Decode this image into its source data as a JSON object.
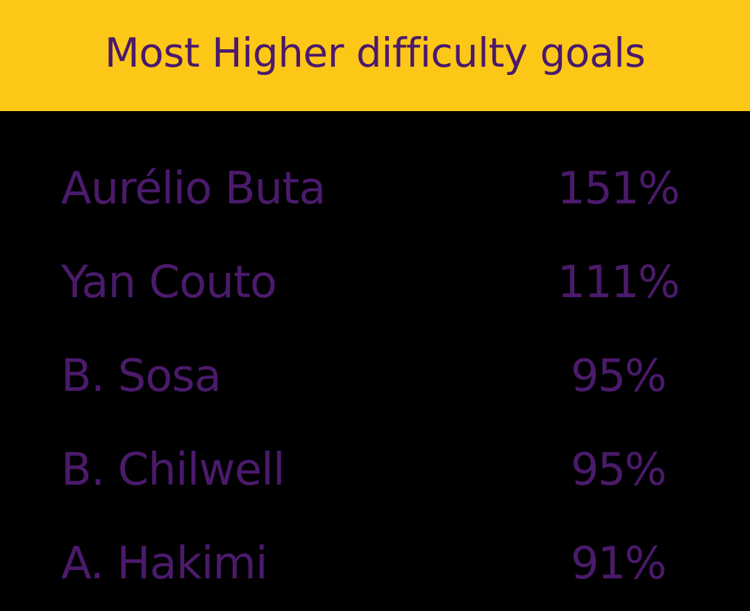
{
  "chart_data": {
    "type": "table",
    "title": "Most Higher difficulty goals",
    "rows": [
      {
        "name": "Aurélio Buta",
        "value": "151%"
      },
      {
        "name": "Yan Couto",
        "value": "111%"
      },
      {
        "name": "B. Sosa",
        "value": "95%"
      },
      {
        "name": "B. Chilwell",
        "value": "95%"
      },
      {
        "name": "A. Hakimi",
        "value": "91%"
      }
    ]
  },
  "colors": {
    "header_bg": "#fdc717",
    "text": "#4b1a6b",
    "background": "#000000"
  }
}
